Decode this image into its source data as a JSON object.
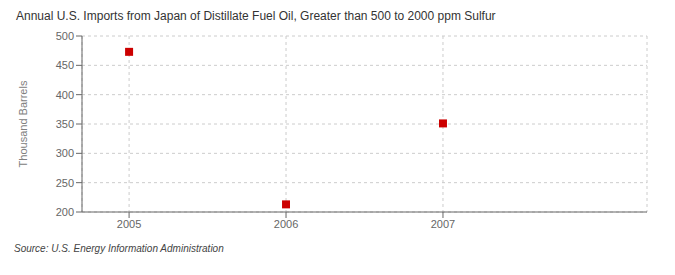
{
  "chart_data": {
    "type": "scatter",
    "title": "Annual U.S. Imports from Japan of Distillate Fuel Oil, Greater than 500 to 2000 ppm Sulfur",
    "ylabel": "Thousand Barrels",
    "source": "Source: U.S. Energy Information Administration",
    "x": [
      2005,
      2006,
      2007
    ],
    "values": [
      473,
      213,
      351
    ],
    "color": "#cc0000",
    "marker": "square",
    "xlim": [
      2004.7,
      2008.3
    ],
    "ylim": [
      200,
      500
    ],
    "xticks": [
      2005,
      2006,
      2007
    ],
    "yticks": [
      200,
      250,
      300,
      350,
      400,
      450,
      500
    ],
    "grid": true
  }
}
